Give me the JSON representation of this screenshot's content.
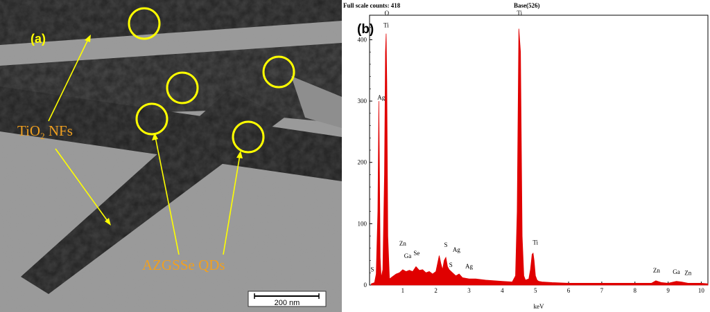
{
  "panel_a": {
    "tag": "(a)",
    "labels": {
      "nanofiber": "TiO",
      "nanofiber_sub": "2",
      "nanofiber_suffix": " NFs",
      "quantum_dot": "AZGSSe QDs"
    },
    "scale_bar": "200 nm",
    "colors": {
      "circle": "#ffff00",
      "label": "#f0a020",
      "arrow": "#ffff00"
    }
  },
  "panel_b": {
    "tag": "(b)",
    "header_left": "Full scale counts: 418",
    "header_right": "Base(526)",
    "colors": {
      "spectrum": "#e00000"
    }
  },
  "chart_data": {
    "type": "area",
    "title": "",
    "xlabel": "keV",
    "ylabel": "",
    "xlim": [
      0,
      10.2
    ],
    "ylim": [
      0,
      440
    ],
    "x_ticks": [
      1,
      2,
      3,
      4,
      5,
      6,
      7,
      8,
      9,
      10
    ],
    "y_ticks": [
      0,
      100,
      200,
      300,
      400
    ],
    "x": [
      0.05,
      0.15,
      0.2,
      0.25,
      0.28,
      0.3,
      0.32,
      0.35,
      0.4,
      0.45,
      0.48,
      0.5,
      0.52,
      0.55,
      0.6,
      0.7,
      0.8,
      0.9,
      1.0,
      1.1,
      1.2,
      1.3,
      1.4,
      1.5,
      1.6,
      1.7,
      1.8,
      1.9,
      2.0,
      2.05,
      2.1,
      2.15,
      2.2,
      2.25,
      2.3,
      2.35,
      2.4,
      2.5,
      2.6,
      2.7,
      2.8,
      3.0,
      3.2,
      3.5,
      4.0,
      4.3,
      4.4,
      4.45,
      4.5,
      4.55,
      4.6,
      4.65,
      4.7,
      4.8,
      4.85,
      4.9,
      4.93,
      4.96,
      5.0,
      5.05,
      5.1,
      5.2,
      5.5,
      6.0,
      6.5,
      7.0,
      7.5,
      8.0,
      8.5,
      8.63,
      8.8,
      9.0,
      9.25,
      9.4,
      9.6,
      10.0,
      10.2
    ],
    "y": [
      2,
      4,
      18,
      120,
      300,
      180,
      45,
      12,
      25,
      180,
      380,
      410,
      330,
      80,
      10,
      14,
      18,
      20,
      25,
      22,
      24,
      22,
      30,
      24,
      25,
      20,
      22,
      18,
      22,
      35,
      48,
      35,
      25,
      40,
      45,
      30,
      25,
      20,
      15,
      18,
      12,
      10,
      10,
      8,
      6,
      5,
      15,
      120,
      418,
      380,
      80,
      15,
      8,
      10,
      25,
      50,
      52,
      40,
      15,
      8,
      6,
      5,
      4,
      3,
      3,
      3,
      3,
      3,
      3,
      7,
      4,
      3,
      6,
      5,
      3,
      3,
      2
    ],
    "peak_labels": [
      {
        "label": "Ag",
        "x": 0.35,
        "y": 300
      },
      {
        "label": "O",
        "x": 0.52,
        "y": 438
      },
      {
        "label": "Ti",
        "x": 0.5,
        "y": 418
      },
      {
        "label": "S",
        "x": 0.08,
        "y": 20
      },
      {
        "label": "Zn",
        "x": 1.0,
        "y": 62
      },
      {
        "label": "Ga",
        "x": 1.15,
        "y": 42
      },
      {
        "label": "Se",
        "x": 1.42,
        "y": 46
      },
      {
        "label": "S",
        "x": 2.3,
        "y": 60
      },
      {
        "label": "Ag",
        "x": 2.62,
        "y": 52
      },
      {
        "label": "S",
        "x": 2.45,
        "y": 27
      },
      {
        "label": "Ag",
        "x": 3.0,
        "y": 25
      },
      {
        "label": "Ti",
        "x": 4.52,
        "y": 438
      },
      {
        "label": "Ti",
        "x": 5.0,
        "y": 64
      },
      {
        "label": "Zn",
        "x": 8.65,
        "y": 18
      },
      {
        "label": "Ga",
        "x": 9.25,
        "y": 16
      },
      {
        "label": "Zn",
        "x": 9.6,
        "y": 14
      }
    ]
  }
}
